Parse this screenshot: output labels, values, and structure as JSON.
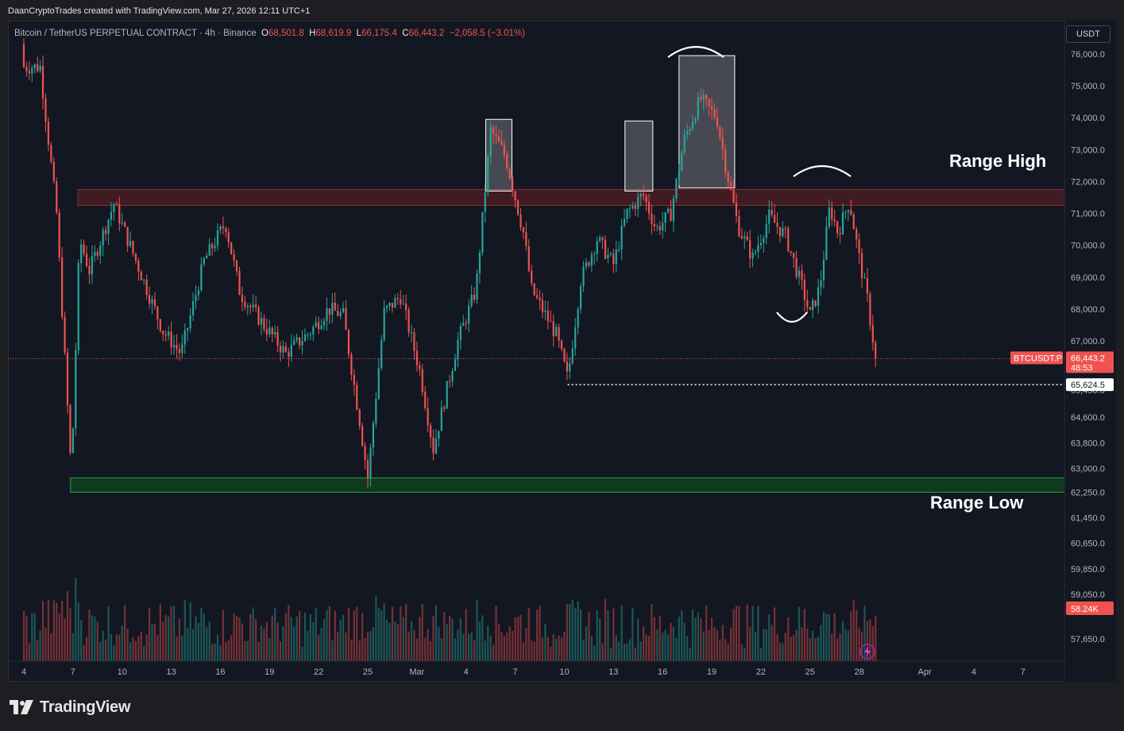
{
  "header": {
    "credit": "DaanCryptoTrades created with TradingView.com, Mar 27, 2026 12:11 UTC+1"
  },
  "legend": {
    "symbol_desc": "Bitcoin / TetherUS PERPETUAL CONTRACT · 4h · Binance",
    "o_label": "O",
    "o_value": "68,501.8",
    "h_label": "H",
    "h_value": "68,619.9",
    "l_label": "L",
    "l_value": "66,175.4",
    "c_label": "C",
    "c_value": "66,443.2",
    "change": "−2,058.5 (−3.01%)"
  },
  "price_axis": {
    "currency": "USDT",
    "current_symbol": "BTCUSDT.P",
    "current_price": "66,443.2",
    "countdown": "48:53",
    "level_label": "65,624.5",
    "volume_label": "58.24K"
  },
  "annotations": {
    "range_high": "Range High",
    "range_low": "Range Low"
  },
  "footer": {
    "brand": "TradingView"
  },
  "colors": {
    "bull": "#26a69a",
    "bear": "#ef5350",
    "background": "#131722",
    "range_high_zone": "#4a1c22",
    "range_low_zone": "#0f3a1f",
    "box": "#ffffff"
  },
  "chart_data": {
    "type": "candlestick",
    "timeframe": "4h",
    "symbol": "BTCUSDT.P",
    "ylim": [
      56700,
      76900
    ],
    "y_ticks": [
      {
        "value": 76000,
        "label": "76,000.0"
      },
      {
        "value": 75000,
        "label": "75,000.0"
      },
      {
        "value": 74000,
        "label": "74,000.0"
      },
      {
        "value": 73000,
        "label": "73,000.0"
      },
      {
        "value": 72000,
        "label": "72,000.0"
      },
      {
        "value": 71000,
        "label": "71,000.0"
      },
      {
        "value": 70000,
        "label": "70,000.0"
      },
      {
        "value": 69000,
        "label": "69,000.0"
      },
      {
        "value": 68000,
        "label": "68,000.0"
      },
      {
        "value": 67000,
        "label": "67,000.0"
      },
      {
        "value": 65450,
        "label": "65,450.0"
      },
      {
        "value": 64600,
        "label": "64,600.0"
      },
      {
        "value": 63800,
        "label": "63,800.0"
      },
      {
        "value": 63000,
        "label": "63,000.0"
      },
      {
        "value": 62250,
        "label": "62,250.0"
      },
      {
        "value": 61450,
        "label": "61,450.0"
      },
      {
        "value": 60650,
        "label": "60,650.0"
      },
      {
        "value": 59850,
        "label": "59,850.0"
      },
      {
        "value": 59050,
        "label": "59,050.0"
      },
      {
        "value": 57650,
        "label": "57,650.0"
      }
    ],
    "x_ticks": [
      "4",
      "7",
      "10",
      "13",
      "16",
      "19",
      "22",
      "25",
      "Mar",
      "4",
      "7",
      "10",
      "13",
      "16",
      "19",
      "22",
      "25",
      "28",
      "Apr",
      "4",
      "7"
    ],
    "x_tick_positions_days": [
      0,
      3,
      6,
      9,
      12,
      15,
      18,
      21,
      24,
      27,
      30,
      33,
      36,
      39,
      42,
      45,
      48,
      51,
      55,
      58,
      61
    ],
    "range_high_zone": [
      71250,
      71750
    ],
    "range_low_zone": [
      62250,
      62700
    ],
    "support_level": 65624.5,
    "current_price": 66443.2,
    "highlight_boxes_days": [
      [
        28.2,
        29.8
      ],
      [
        36.7,
        38.4
      ],
      [
        40.0,
        43.4
      ]
    ],
    "key_points": [
      {
        "day": 1.0,
        "close": 75600
      },
      {
        "day": 2.0,
        "close": 71000
      },
      {
        "day": 2.9,
        "close": 62800
      },
      {
        "day": 3.4,
        "close": 70200
      },
      {
        "day": 4.0,
        "close": 69200
      },
      {
        "day": 5.5,
        "close": 71300
      },
      {
        "day": 7.0,
        "close": 69300
      },
      {
        "day": 8.5,
        "close": 67300
      },
      {
        "day": 9.6,
        "close": 66600
      },
      {
        "day": 11.0,
        "close": 69500
      },
      {
        "day": 12.3,
        "close": 70700
      },
      {
        "day": 13.2,
        "close": 68500
      },
      {
        "day": 14.5,
        "close": 67600
      },
      {
        "day": 16.0,
        "close": 66600
      },
      {
        "day": 17.5,
        "close": 67300
      },
      {
        "day": 18.6,
        "close": 68000
      },
      {
        "day": 19.5,
        "close": 67800
      },
      {
        "day": 20.5,
        "close": 64500
      },
      {
        "day": 21.0,
        "close": 62700
      },
      {
        "day": 22.0,
        "close": 67900
      },
      {
        "day": 23.0,
        "close": 68400
      },
      {
        "day": 24.2,
        "close": 66000
      },
      {
        "day": 25.0,
        "close": 63600
      },
      {
        "day": 26.5,
        "close": 67000
      },
      {
        "day": 27.6,
        "close": 68600
      },
      {
        "day": 28.5,
        "close": 73600
      },
      {
        "day": 29.4,
        "close": 72800
      },
      {
        "day": 30.5,
        "close": 70400
      },
      {
        "day": 31.0,
        "close": 68600
      },
      {
        "day": 32.5,
        "close": 67200
      },
      {
        "day": 33.2,
        "close": 65800
      },
      {
        "day": 34.0,
        "close": 68900
      },
      {
        "day": 35.0,
        "close": 70200
      },
      {
        "day": 36.0,
        "close": 69400
      },
      {
        "day": 36.8,
        "close": 71000
      },
      {
        "day": 37.8,
        "close": 71600
      },
      {
        "day": 38.6,
        "close": 70500
      },
      {
        "day": 39.5,
        "close": 71000
      },
      {
        "day": 40.3,
        "close": 73300
      },
      {
        "day": 41.3,
        "close": 74600
      },
      {
        "day": 42.3,
        "close": 74000
      },
      {
        "day": 43.0,
        "close": 72100
      },
      {
        "day": 43.6,
        "close": 70600
      },
      {
        "day": 44.5,
        "close": 69600
      },
      {
        "day": 45.5,
        "close": 70900
      },
      {
        "day": 46.5,
        "close": 70300
      },
      {
        "day": 47.5,
        "close": 68700
      },
      {
        "day": 48.0,
        "close": 67800
      },
      {
        "day": 48.6,
        "close": 68700
      },
      {
        "day": 49.2,
        "close": 71200
      },
      {
        "day": 49.7,
        "close": 70400
      },
      {
        "day": 50.4,
        "close": 71400
      },
      {
        "day": 51.0,
        "close": 69600
      },
      {
        "day": 51.5,
        "close": 68300
      },
      {
        "day": 52.0,
        "close": 66443
      }
    ]
  }
}
